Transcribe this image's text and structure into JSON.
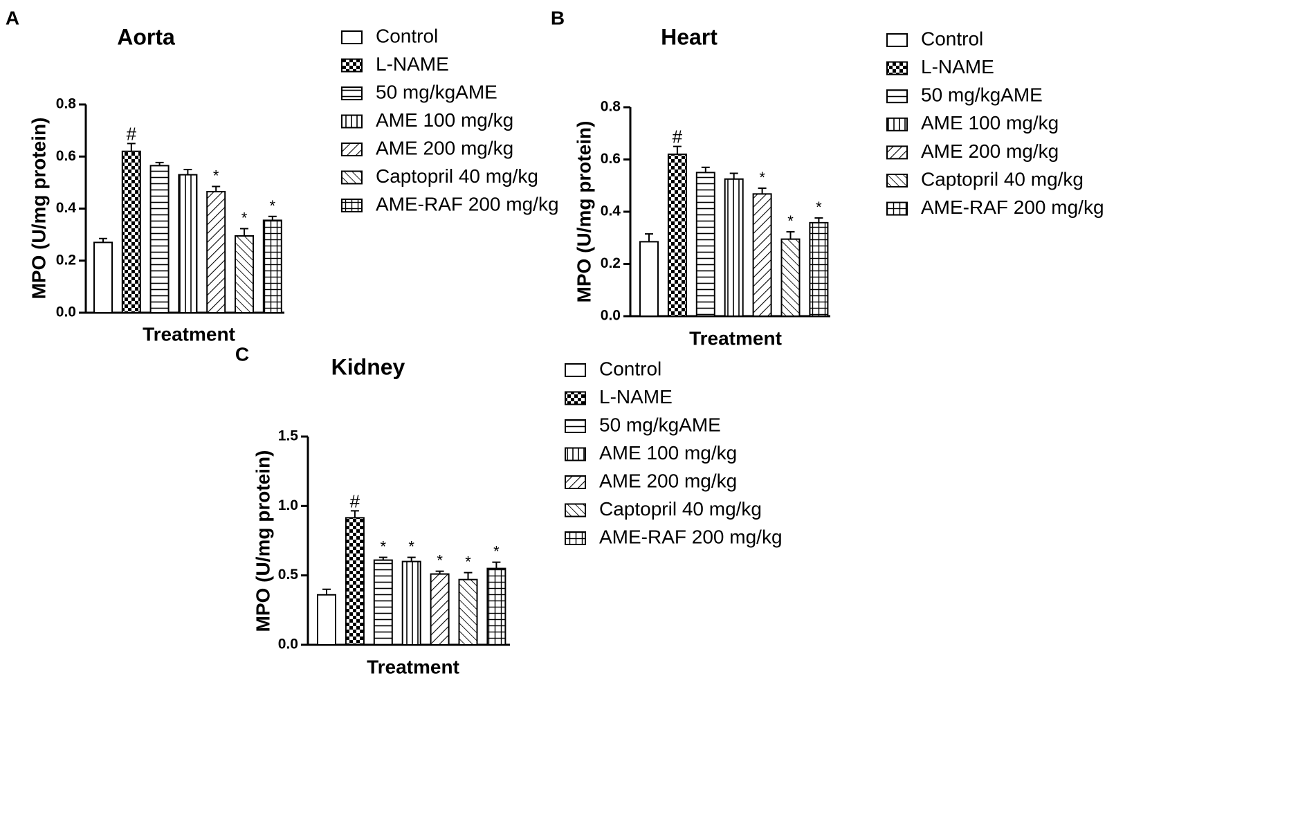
{
  "legend_labels": [
    "Control",
    "L-NAME",
    "50 mg/kgAME",
    "AME 100 mg/kg",
    "AME 200 mg/kg",
    "Captopril 40 mg/kg",
    "AME-RAF 200 mg/kg"
  ],
  "colors": {
    "ink": "#000000",
    "background": "#ffffff"
  },
  "chart_data": [
    {
      "panel": "A",
      "type": "bar",
      "title": "Aorta",
      "xlabel": "Treatment",
      "ylabel": "MPO (U/mg protein)",
      "ylim": [
        0,
        0.8
      ],
      "yticks": [
        "0.0",
        "0.2",
        "0.4",
        "0.6",
        "0.8"
      ],
      "categories": [
        "Control",
        "L-NAME",
        "50 mg/kgAME",
        "AME 100 mg/kg",
        "AME 200 mg/kg",
        "Captopril 40 mg/kg",
        "AME-RAF 200 mg/kg"
      ],
      "values": [
        0.27,
        0.62,
        0.565,
        0.53,
        0.465,
        0.295,
        0.355
      ],
      "errors": [
        0.015,
        0.03,
        0.012,
        0.02,
        0.02,
        0.028,
        0.015
      ],
      "significance": [
        "",
        "#",
        "",
        "",
        "*",
        "*",
        "*"
      ]
    },
    {
      "panel": "B",
      "type": "bar",
      "title": "Heart",
      "xlabel": "Treatment",
      "ylabel": "MPO (U/mg protein)",
      "ylim": [
        0,
        0.8
      ],
      "yticks": [
        "0.0",
        "0.2",
        "0.4",
        "0.6",
        "0.8"
      ],
      "categories": [
        "Control",
        "L-NAME",
        "50 mg/kgAME",
        "AME 100 mg/kg",
        "AME 200 mg/kg",
        "Captopril 40 mg/kg",
        "AME-RAF 200 mg/kg"
      ],
      "values": [
        0.285,
        0.62,
        0.55,
        0.525,
        0.468,
        0.295,
        0.358
      ],
      "errors": [
        0.03,
        0.03,
        0.02,
        0.022,
        0.022,
        0.028,
        0.018
      ],
      "significance": [
        "",
        "#",
        "",
        "",
        "*",
        "*",
        "*"
      ]
    },
    {
      "panel": "C",
      "type": "bar",
      "title": "Kidney",
      "xlabel": "Treatment",
      "ylabel": "MPO (U/mg protein)",
      "ylim": [
        0,
        1.5
      ],
      "yticks": [
        "0.0",
        "0.5",
        "1.0",
        "1.5"
      ],
      "categories": [
        "Control",
        "L-NAME",
        "50 mg/kgAME",
        "AME 100 mg/kg",
        "AME 200 mg/kg",
        "Captopril 40 mg/kg",
        "AME-RAF 200 mg/kg"
      ],
      "values": [
        0.36,
        0.915,
        0.61,
        0.6,
        0.51,
        0.47,
        0.55
      ],
      "errors": [
        0.04,
        0.05,
        0.02,
        0.03,
        0.02,
        0.05,
        0.045
      ],
      "significance": [
        "",
        "#",
        "*",
        "*",
        "*",
        "*",
        "*"
      ]
    }
  ]
}
